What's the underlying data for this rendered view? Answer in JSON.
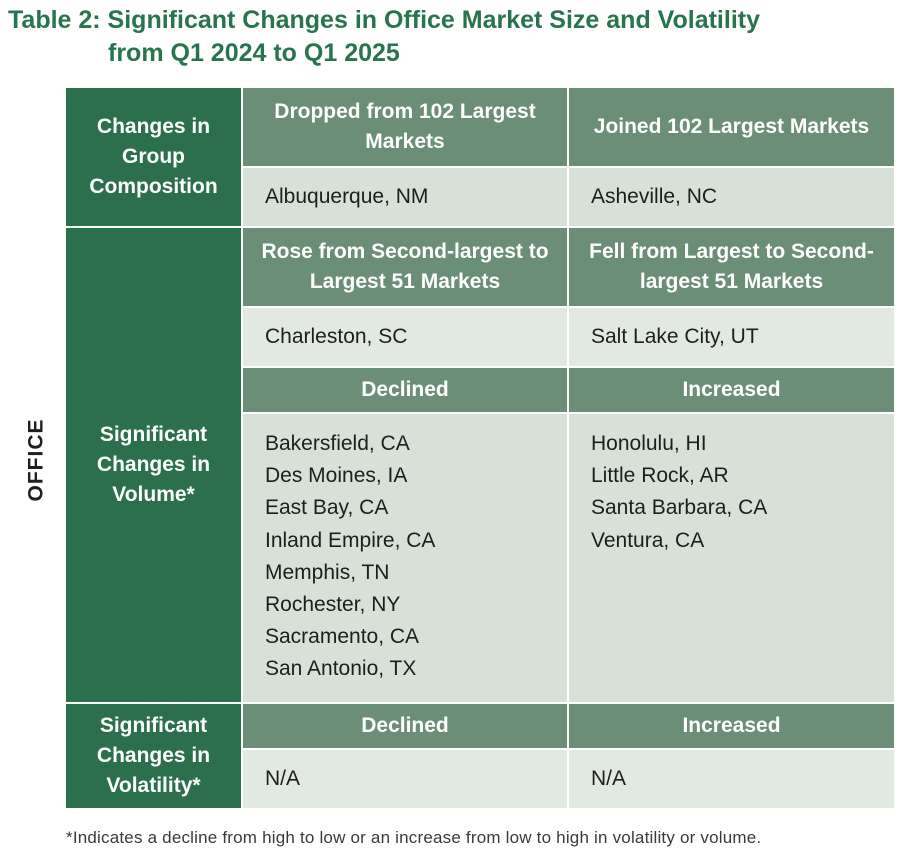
{
  "title": {
    "line1": "Table 2: Significant Changes in Office Market Size and Volatility",
    "line2": "from Q1 2024 to Q1 2025"
  },
  "side_label": "OFFICE",
  "sections": {
    "composition": {
      "label": "Changes in Group Composition",
      "col1_header": "Dropped from 102 Largest Markets",
      "col2_header": "Joined 102 Largest Markets",
      "col1_value": "Albuquerque, NM",
      "col2_value": "Asheville, NC"
    },
    "volume": {
      "label": "Significant Changes in Volume*",
      "rank_col1_header": "Rose from Second-largest to Largest 51 Markets",
      "rank_col2_header": "Fell from Largest to Second-largest 51 Markets",
      "rank_col1_value": "Charleston, SC",
      "rank_col2_value": "Salt Lake City, UT",
      "change_col1_header": "Declined",
      "change_col2_header": "Increased",
      "declined": [
        "Bakersfield, CA",
        "Des Moines, IA",
        "East Bay, CA",
        "Inland Empire, CA",
        "Memphis, TN",
        "Rochester, NY",
        "Sacramento, CA",
        "San Antonio, TX"
      ],
      "increased": [
        "Honolulu, HI",
        "Little Rock, AR",
        "Santa Barbara, CA",
        "Ventura, CA"
      ]
    },
    "volatility": {
      "label": "Significant Changes in Volatility*",
      "col1_header": "Declined",
      "col2_header": "Increased",
      "col1_value": "N/A",
      "col2_value": "N/A"
    }
  },
  "footnote": "*Indicates a decline from high to low or an increase from low to high in volatility or volume."
}
